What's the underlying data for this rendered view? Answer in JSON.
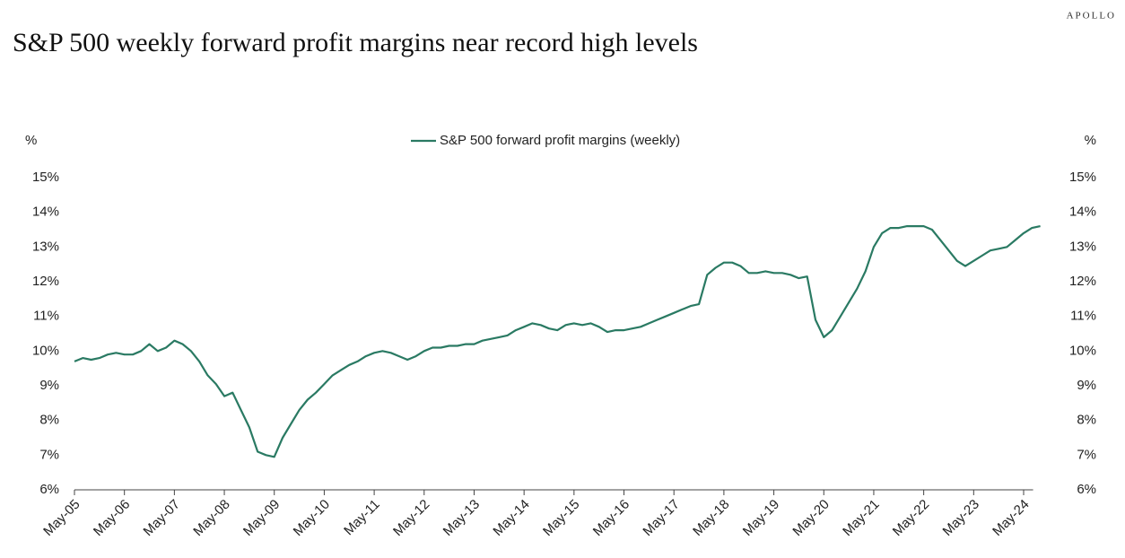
{
  "brand": "APOLLO",
  "chart_data": {
    "type": "line",
    "title": "S&P 500 weekly forward profit margins near record high levels",
    "y_label": "%",
    "y2_label": "%",
    "categories": [
      "May-05",
      null,
      null,
      null,
      null,
      null,
      "May-06",
      null,
      null,
      null,
      null,
      null,
      "May-07",
      null,
      null,
      null,
      null,
      null,
      "May-08",
      null,
      null,
      null,
      null,
      null,
      "May-09",
      null,
      null,
      null,
      null,
      null,
      "May-10",
      null,
      null,
      null,
      null,
      null,
      "May-11",
      null,
      null,
      null,
      null,
      null,
      "May-12",
      null,
      null,
      null,
      null,
      null,
      "May-13",
      null,
      null,
      null,
      null,
      null,
      "May-14",
      null,
      null,
      null,
      null,
      null,
      "May-15",
      null,
      null,
      null,
      null,
      null,
      "May-16",
      null,
      null,
      null,
      null,
      null,
      "May-17",
      null,
      null,
      null,
      null,
      null,
      "May-18",
      null,
      null,
      null,
      null,
      null,
      "May-19",
      null,
      null,
      null,
      null,
      null,
      "May-20",
      null,
      null,
      null,
      null,
      null,
      "May-21",
      null,
      null,
      null,
      null,
      null,
      "May-22",
      null,
      null,
      null,
      null,
      null,
      "May-23",
      null,
      null,
      null,
      null,
      null,
      "May-24",
      null,
      null
    ],
    "series": [
      {
        "name": "S&P 500 forward profit margins (weekly)",
        "color": "#2a7a63",
        "values": [
          9.7,
          9.8,
          9.75,
          9.8,
          9.9,
          9.95,
          9.9,
          9.9,
          10.0,
          10.2,
          10.0,
          10.1,
          10.3,
          10.2,
          10.0,
          9.7,
          9.3,
          9.05,
          8.7,
          8.8,
          8.3,
          7.8,
          7.1,
          7.0,
          6.95,
          7.5,
          7.9,
          8.3,
          8.6,
          8.8,
          9.05,
          9.3,
          9.45,
          9.6,
          9.7,
          9.85,
          9.95,
          10.0,
          9.95,
          9.85,
          9.75,
          9.85,
          10.0,
          10.1,
          10.1,
          10.15,
          10.15,
          10.2,
          10.2,
          10.3,
          10.35,
          10.4,
          10.45,
          10.6,
          10.7,
          10.8,
          10.75,
          10.65,
          10.6,
          10.75,
          10.8,
          10.75,
          10.8,
          10.7,
          10.55,
          10.6,
          10.6,
          10.65,
          10.7,
          10.8,
          10.9,
          11.0,
          11.1,
          11.2,
          11.3,
          11.35,
          12.2,
          12.4,
          12.55,
          12.55,
          12.45,
          12.25,
          12.25,
          12.3,
          12.25,
          12.25,
          12.2,
          12.1,
          12.15,
          10.9,
          10.4,
          10.6,
          11.0,
          11.4,
          11.8,
          12.3,
          13.0,
          13.4,
          13.55,
          13.55,
          13.6,
          13.6,
          13.6,
          13.5,
          13.2,
          12.9,
          12.6,
          12.45,
          12.6,
          12.75,
          12.9,
          12.95,
          13.0,
          13.2,
          13.4,
          13.55,
          13.6
        ]
      }
    ],
    "ylim": [
      6,
      15
    ],
    "yticks": [
      {
        "value": 6,
        "label": "6%"
      },
      {
        "value": 7,
        "label": "7%"
      },
      {
        "value": 8,
        "label": "8%"
      },
      {
        "value": 9,
        "label": "9%"
      },
      {
        "value": 10,
        "label": "10%"
      },
      {
        "value": 11,
        "label": "11%"
      },
      {
        "value": 12,
        "label": "12%"
      },
      {
        "value": 13,
        "label": "13%"
      },
      {
        "value": 14,
        "label": "14%"
      },
      {
        "value": 15,
        "label": "15%"
      }
    ],
    "y2lim": [
      6,
      15
    ],
    "y2ticks": [
      {
        "value": 6,
        "label": "6%"
      },
      {
        "value": 7,
        "label": "7%"
      },
      {
        "value": 8,
        "label": "8%"
      },
      {
        "value": 9,
        "label": "9%"
      },
      {
        "value": 10,
        "label": "10%"
      },
      {
        "value": 11,
        "label": "11%"
      },
      {
        "value": 12,
        "label": "12%"
      },
      {
        "value": 13,
        "label": "13%"
      },
      {
        "value": 14,
        "label": "14%"
      },
      {
        "value": 15,
        "label": "15%"
      }
    ],
    "grid": false
  }
}
